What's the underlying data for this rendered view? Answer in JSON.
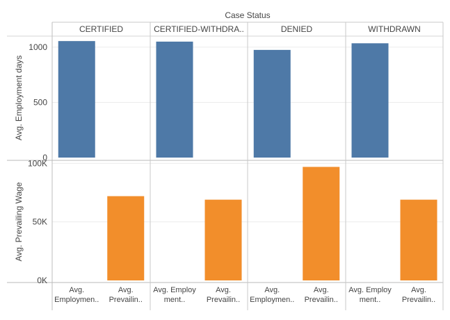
{
  "chart_data": {
    "type": "bar",
    "title": "Case Status",
    "columns": [
      "CERTIFIED",
      "CERTIFIED-WITHDRA..",
      "DENIED",
      "WITHDRAWN"
    ],
    "x_labels": [
      [
        "Avg.",
        "Employmen.."
      ],
      [
        "Avg.",
        "Prevailin.."
      ],
      [
        "Avg. Employ",
        "ment.."
      ],
      [
        "Avg.",
        "Prevailin.."
      ],
      [
        "Avg.",
        "Employmen.."
      ],
      [
        "Avg.",
        "Prevailin.."
      ],
      [
        "Avg. Employ",
        "ment.."
      ],
      [
        "Avg.",
        "Prevailin.."
      ]
    ],
    "rows": [
      {
        "ylabel": "Avg. Employment days",
        "ylim": [
          0,
          1100
        ],
        "ticks": [
          0,
          500,
          1000
        ],
        "tick_labels": [
          "0",
          "500",
          "1000"
        ],
        "color": "#4E79A7",
        "measure_index": 0,
        "values": [
          1055,
          1050,
          975,
          1035
        ]
      },
      {
        "ylabel": "Avg. Prevailing Wage",
        "ylim": [
          0,
          102000
        ],
        "ticks": [
          0,
          50000,
          100000
        ],
        "tick_labels": [
          "0K",
          "50K",
          "100K"
        ],
        "color": "#F28E2B",
        "measure_index": 1,
        "values": [
          72000,
          69000,
          97000,
          69000
        ]
      }
    ],
    "grid": true,
    "legend": "none"
  }
}
